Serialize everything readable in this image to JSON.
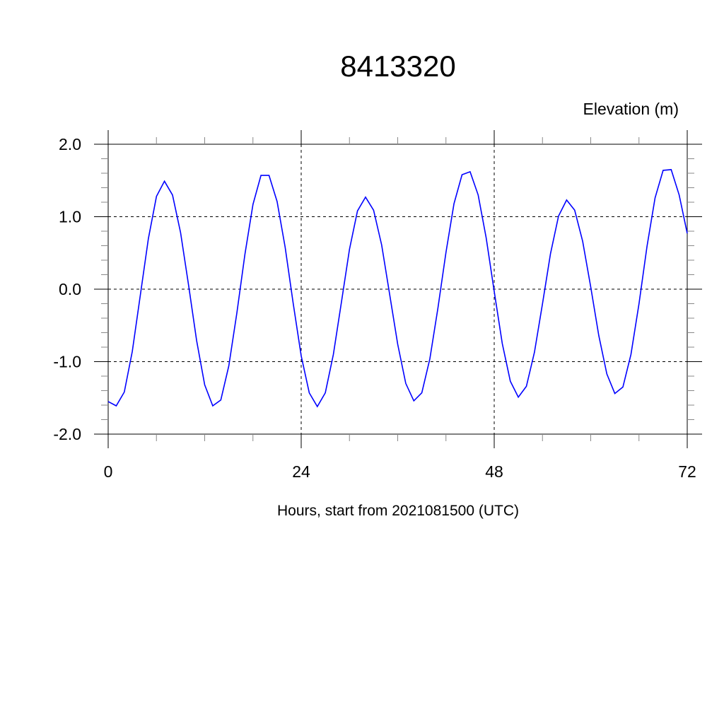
{
  "chart_data": {
    "type": "line",
    "title": "8413320",
    "ylabel": "Elevation (m)",
    "xlabel": "Hours, start from 2021081500 (UTC)",
    "xlim": [
      0,
      72
    ],
    "ylim": [
      -2.0,
      2.0
    ],
    "x_ticks": [
      0,
      24,
      48,
      72
    ],
    "x_tick_labels": [
      "0",
      "24",
      "48",
      "72"
    ],
    "y_ticks": [
      -2.0,
      -1.0,
      0.0,
      1.0,
      2.0
    ],
    "y_tick_labels": [
      "-2.0",
      "-1.0",
      "0.0",
      "1.0",
      "2.0"
    ],
    "grid": true,
    "line_color": "#0000ff",
    "x": [
      0,
      1,
      2,
      3,
      4,
      5,
      6,
      7,
      8,
      9,
      10,
      11,
      12,
      13,
      14,
      15,
      16,
      17,
      18,
      19,
      20,
      21,
      22,
      23,
      24,
      25,
      26,
      27,
      28,
      29,
      30,
      31,
      32,
      33,
      34,
      35,
      36,
      37,
      38,
      39,
      40,
      41,
      42,
      43,
      44,
      45,
      46,
      47,
      48,
      49,
      50,
      51,
      52,
      53,
      54,
      55,
      56,
      57,
      58,
      59,
      60,
      61,
      62,
      63,
      64,
      65,
      66,
      67,
      68,
      69,
      70,
      71,
      72
    ],
    "values": [
      -1.55,
      -1.61,
      -1.42,
      -0.86,
      -0.08,
      0.7,
      1.28,
      1.49,
      1.3,
      0.78,
      0.05,
      -0.71,
      -1.32,
      -1.61,
      -1.53,
      -1.06,
      -0.33,
      0.48,
      1.17,
      1.57,
      1.57,
      1.21,
      0.58,
      -0.19,
      -0.92,
      -1.43,
      -1.62,
      -1.43,
      -0.9,
      -0.18,
      0.55,
      1.08,
      1.27,
      1.09,
      0.61,
      -0.07,
      -0.76,
      -1.3,
      -1.54,
      -1.43,
      -0.96,
      -0.26,
      0.51,
      1.18,
      1.58,
      1.62,
      1.3,
      0.71,
      -0.03,
      -0.75,
      -1.27,
      -1.49,
      -1.34,
      -0.87,
      -0.2,
      0.49,
      1.01,
      1.23,
      1.09,
      0.66,
      0.03,
      -0.64,
      -1.17,
      -1.44,
      -1.35,
      -0.9,
      -0.2,
      0.59,
      1.26,
      1.64,
      1.65,
      1.3,
      0.77
    ]
  }
}
